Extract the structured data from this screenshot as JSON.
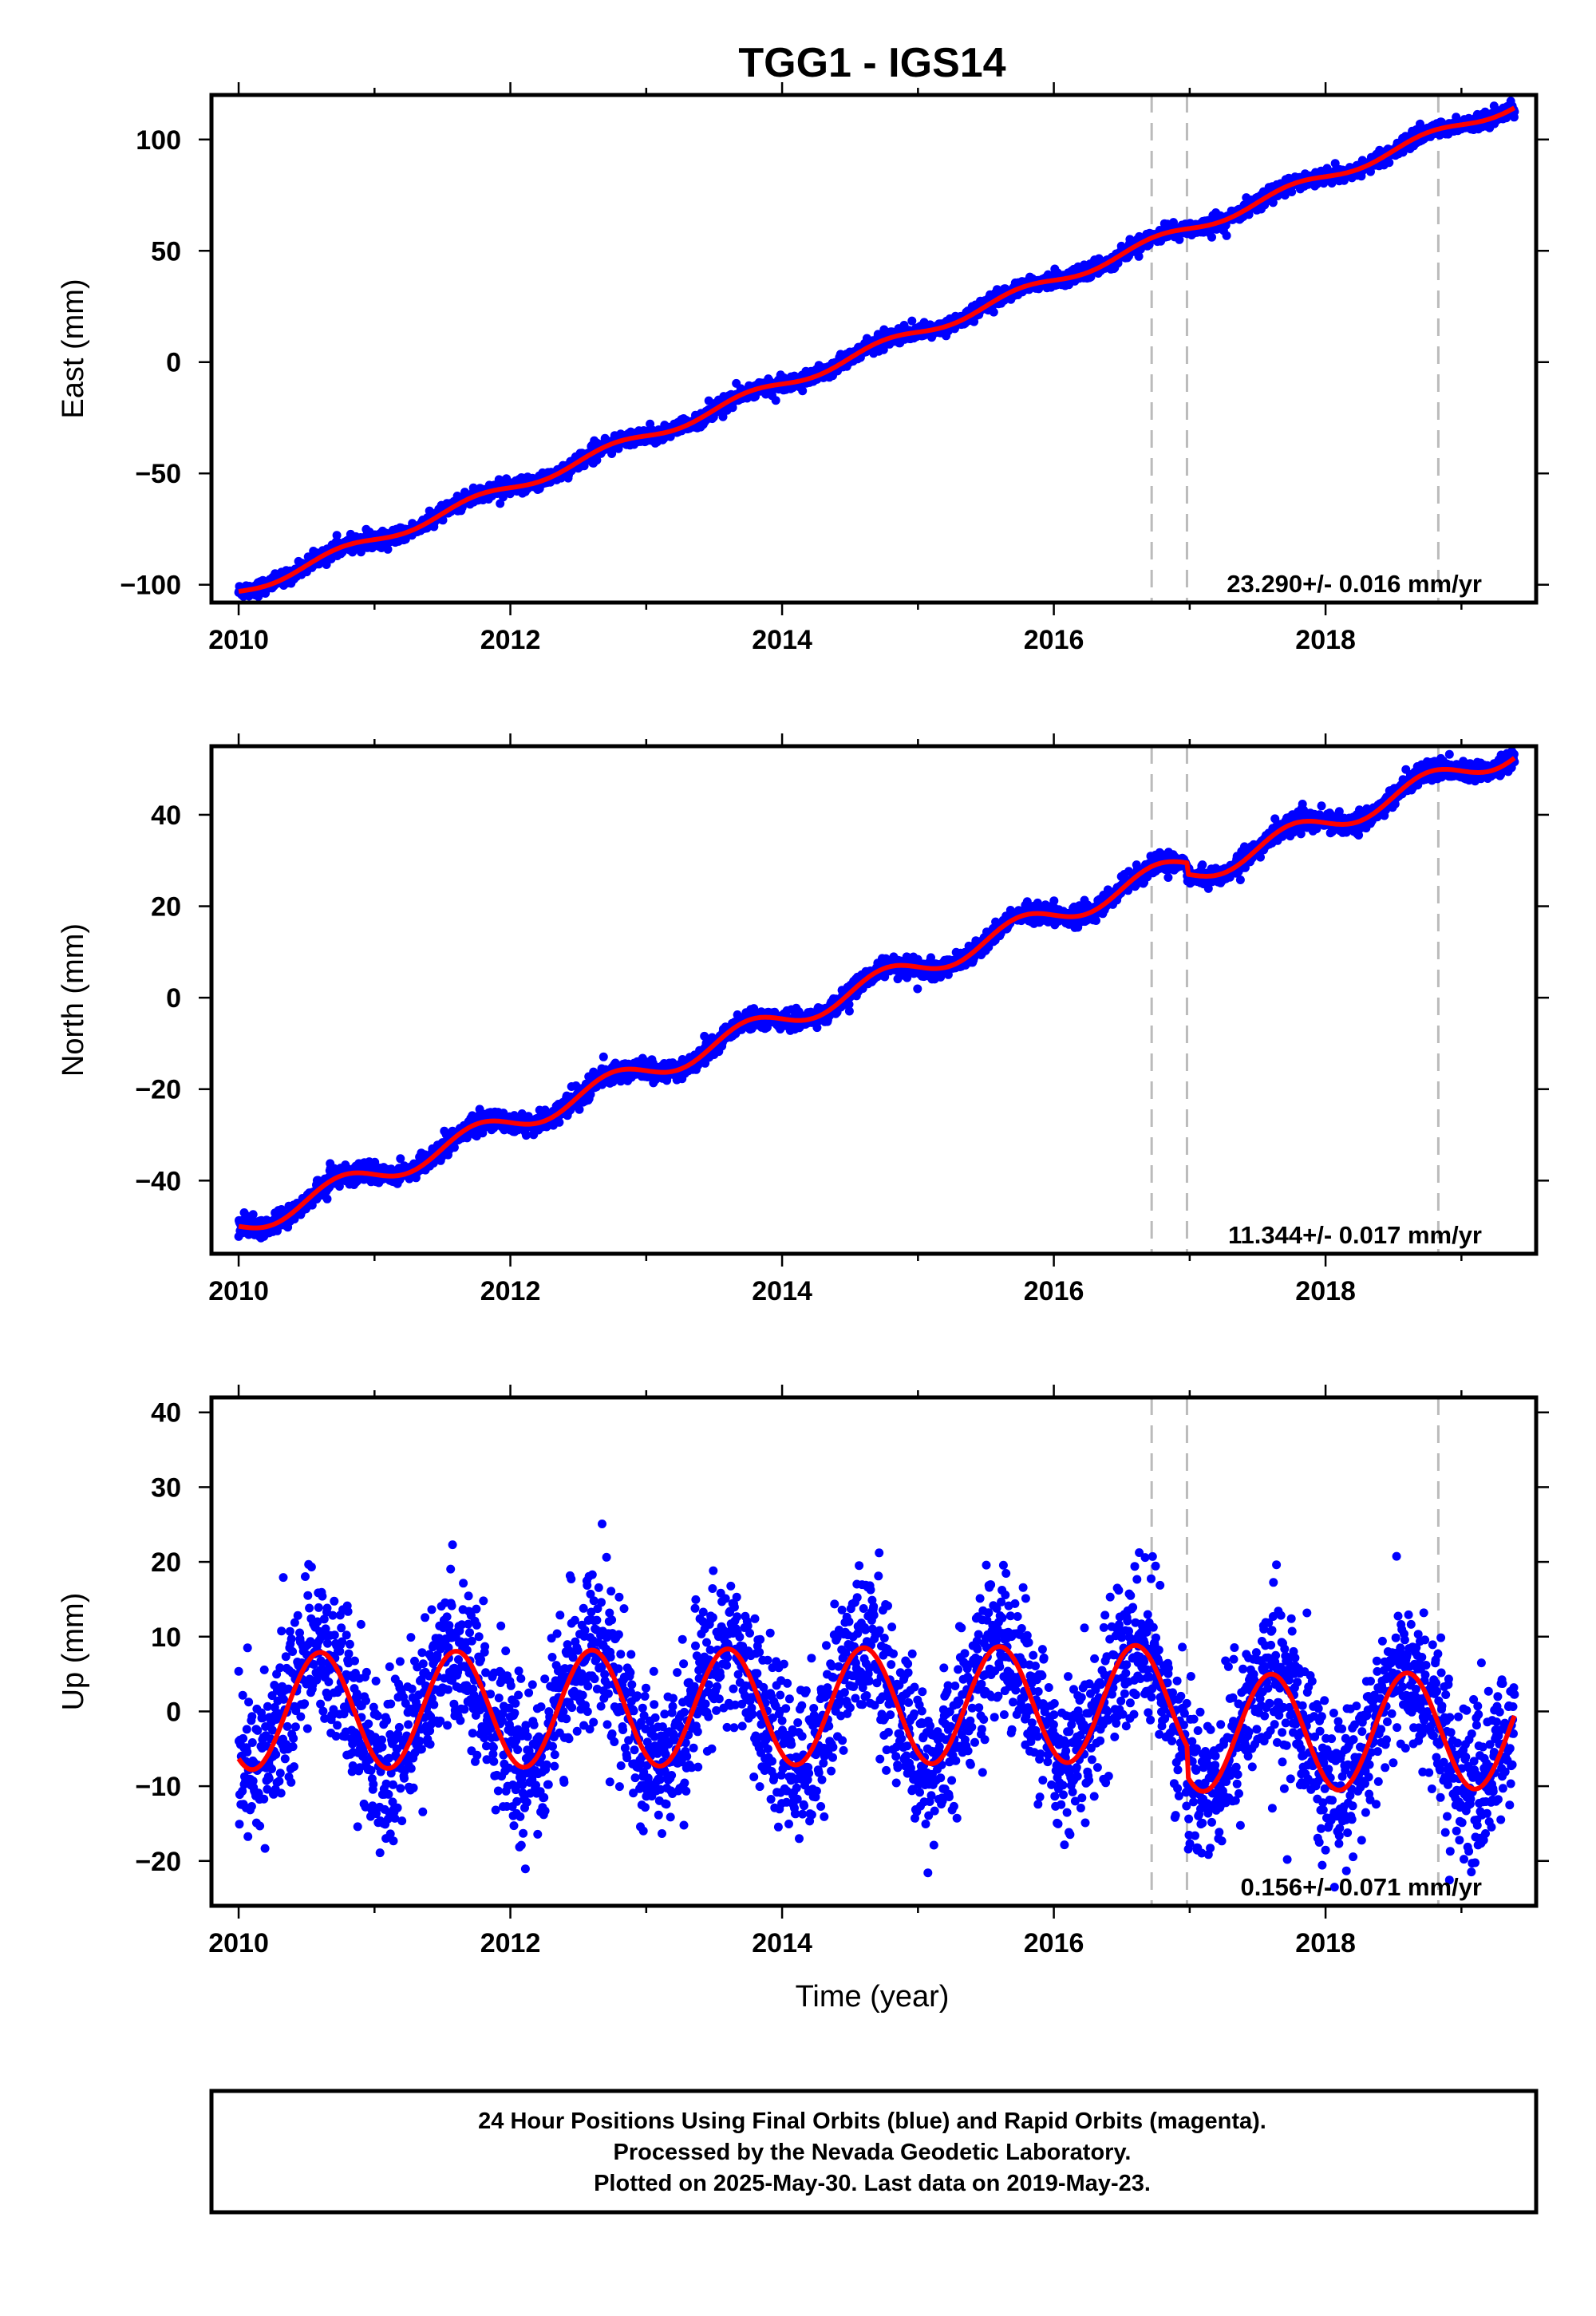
{
  "title": "TGG1 - IGS14",
  "x_axis_label": "Time (year)",
  "caption": [
    "24 Hour Positions Using Final Orbits (blue) and Rapid Orbits (magenta).",
    "Processed by the Nevada Geodetic Laboratory.",
    "Plotted on 2025-May-30. Last data on 2019-May-23."
  ],
  "colors": {
    "data": "#0000ff",
    "model": "#ff0000",
    "break_lines": "#bbbbbb",
    "frame": "#000000"
  },
  "chart_data": [
    {
      "type": "scatter",
      "component": "East",
      "ylabel": "East (mm)",
      "xlim": [
        2009.8,
        2019.55
      ],
      "ylim": [
        -108,
        120
      ],
      "xticks": [
        2010,
        2012,
        2014,
        2016,
        2018
      ],
      "yticks": [
        -100,
        -50,
        0,
        50,
        100
      ],
      "velocity_label": "23.290+/- 0.016 mm/yr",
      "velocity_mm_per_yr": 23.29,
      "start_value_mm": -103,
      "seasonal_amplitude_mm": 2.3,
      "scatter_mm": 1.6,
      "step_offsets": [],
      "equipment_breaks": [
        2016.72,
        2016.98,
        2018.83
      ],
      "data_range": [
        2010.0,
        2019.39
      ],
      "legend": "none",
      "grid": false
    },
    {
      "type": "scatter",
      "component": "North",
      "ylabel": "North (mm)",
      "xlim": [
        2009.8,
        2019.55
      ],
      "ylim": [
        -56,
        55
      ],
      "xticks": [
        2010,
        2012,
        2014,
        2016,
        2018
      ],
      "yticks": [
        -40,
        -20,
        0,
        20,
        40
      ],
      "velocity_label": "11.344+/- 0.017 mm/yr",
      "velocity_mm_per_yr": 11.344,
      "start_value_mm": -50,
      "seasonal_amplitude_mm": 2.5,
      "scatter_mm": 1.0,
      "step_offsets": [
        {
          "year": 2016.98,
          "offset_mm": -2.5
        }
      ],
      "equipment_breaks": [
        2016.72,
        2016.98,
        2018.83
      ],
      "data_range": [
        2010.0,
        2019.39
      ],
      "legend": "none",
      "grid": false
    },
    {
      "type": "scatter",
      "component": "Up",
      "ylabel": "Up (mm)",
      "xlim": [
        2009.8,
        2019.55
      ],
      "ylim": [
        -26,
        42
      ],
      "xticks": [
        2010,
        2012,
        2014,
        2016,
        2018
      ],
      "yticks": [
        -20,
        -10,
        0,
        10,
        20,
        30,
        40
      ],
      "velocity_label": "0.156+/- 0.071 mm/yr",
      "velocity_mm_per_yr": 0.156,
      "start_value_mm": 0,
      "seasonal_amplitude_mm": 7.8,
      "seasonal_peak_phase_year": 0.6,
      "scatter_mm": 5.0,
      "step_offsets": [
        {
          "year": 2016.98,
          "offset_mm": -4.0
        }
      ],
      "equipment_breaks": [
        2016.72,
        2016.98,
        2018.83
      ],
      "data_range": [
        2010.0,
        2019.39
      ],
      "legend": "none",
      "grid": false
    }
  ]
}
